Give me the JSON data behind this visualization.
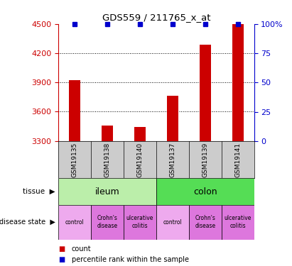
{
  "title": "GDS559 / 211765_x_at",
  "samples": [
    "GSM19135",
    "GSM19138",
    "GSM19140",
    "GSM19137",
    "GSM19139",
    "GSM19141"
  ],
  "counts": [
    3920,
    3460,
    3440,
    3760,
    4290,
    4500
  ],
  "percentiles": [
    100,
    100,
    100,
    100,
    100,
    100
  ],
  "ylim": [
    3300,
    4500
  ],
  "yticks": [
    3300,
    3600,
    3900,
    4200,
    4500
  ],
  "right_yticks": [
    0,
    25,
    50,
    75,
    100
  ],
  "right_ylim": [
    0,
    100
  ],
  "bar_color": "#cc0000",
  "percentile_color": "#0000cc",
  "tissue_row": [
    {
      "label": "ileum",
      "span": [
        0,
        3
      ],
      "color": "#bbeeaa"
    },
    {
      "label": "colon",
      "span": [
        3,
        6
      ],
      "color": "#55dd55"
    }
  ],
  "disease_colors": [
    "#eeaaee",
    "#dd77dd",
    "#dd77dd",
    "#eeaaee",
    "#dd77dd",
    "#dd77dd"
  ],
  "disease_labels": [
    "control",
    "Crohn's\ndisease",
    "ulcerative\ncolitis",
    "control",
    "Crohn's\ndisease",
    "ulcerative\ncolitis"
  ],
  "tissue_label": "tissue",
  "disease_label": "disease state",
  "legend_count_label": "count",
  "legend_pct_label": "percentile rank within the sample",
  "background_color": "#ffffff",
  "left_tick_color": "#cc0000",
  "right_tick_color": "#0000cc",
  "sample_bg_color": "#cccccc"
}
